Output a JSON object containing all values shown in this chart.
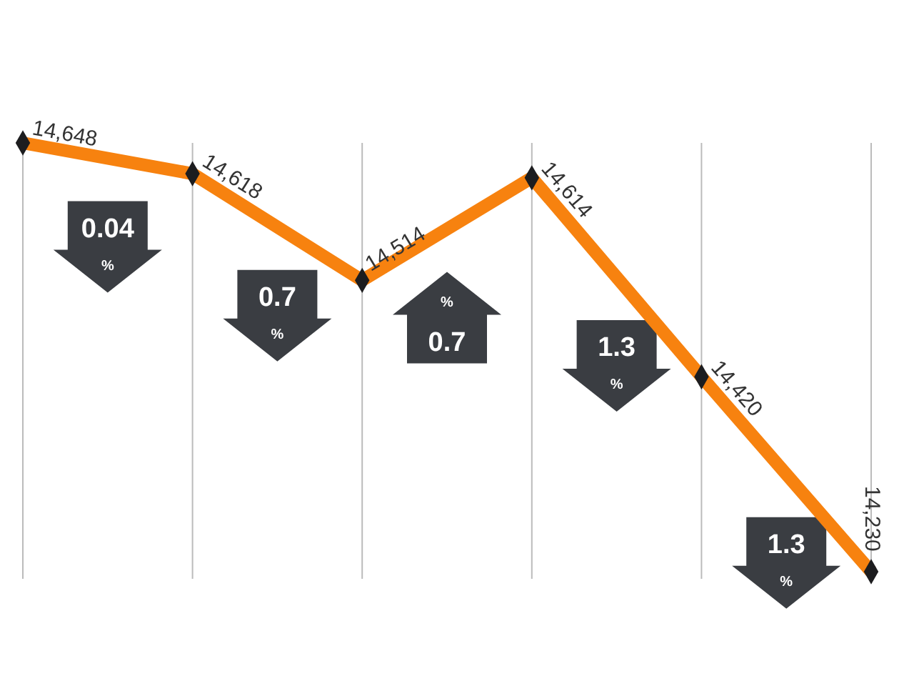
{
  "chart_data": {
    "type": "line",
    "categories": [
      null,
      null,
      null,
      null,
      null,
      null
    ],
    "series": [
      {
        "color": "#f7820f",
        "values": [
          14648,
          14618,
          14514,
          14614,
          14420,
          14230
        ],
        "value_labels": [
          "14,648",
          "14,618",
          "14,514",
          "14,614",
          "14,420",
          "14,230"
        ]
      }
    ],
    "marker": "diamond",
    "grid": "x",
    "annotations": [
      "0.04 %",
      "0.7 %",
      "0.7 %",
      "1.3 %",
      "1.3 %"
    ]
  }
}
